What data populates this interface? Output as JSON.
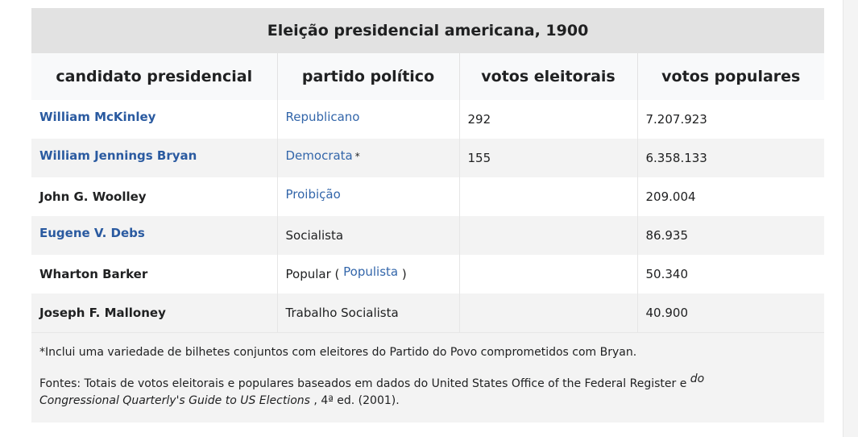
{
  "table": {
    "title": "Eleição presidencial americana, 1900",
    "headers": [
      "candidato presidencial",
      "partido político",
      "votos eleitorais",
      "votos populares"
    ],
    "rows": [
      {
        "candidate": "William McKinley",
        "party": "Republicano",
        "electoral": "292",
        "popular": "7.207.923"
      },
      {
        "candidate": "William Jennings Bryan",
        "party": "Democrata",
        "party_note": "*",
        "electoral": "155",
        "popular": "6.358.133"
      },
      {
        "candidate": "John G. Woolley",
        "party": "Proibição",
        "electoral": "",
        "popular": "209.004"
      },
      {
        "candidate": "Eugene V. Debs",
        "party": "Socialista",
        "electoral": "",
        "popular": "86.935"
      },
      {
        "candidate": "Wharton Barker",
        "party_prefix": "Popular (",
        "party": "Populista",
        "party_suffix": ")",
        "electoral": "",
        "popular": "50.340"
      },
      {
        "candidate": "Joseph F. Malloney",
        "party": "Trabalho Socialista",
        "electoral": "",
        "popular": "40.900"
      }
    ]
  },
  "notes": {
    "note1": "*Inclui uma variedade de bilhetes conjuntos com eleitores do Partido do Povo comprometidos com Bryan.",
    "sources_prefix": "Fontes: Totais de votos eleitorais e populares baseados em dados do United States Office of the Federal Register e",
    "sources_do": "do",
    "sources_book": "Congressional Quarterly's Guide to US Elections",
    "sources_suffix": ", 4ª ed. (2001)."
  }
}
